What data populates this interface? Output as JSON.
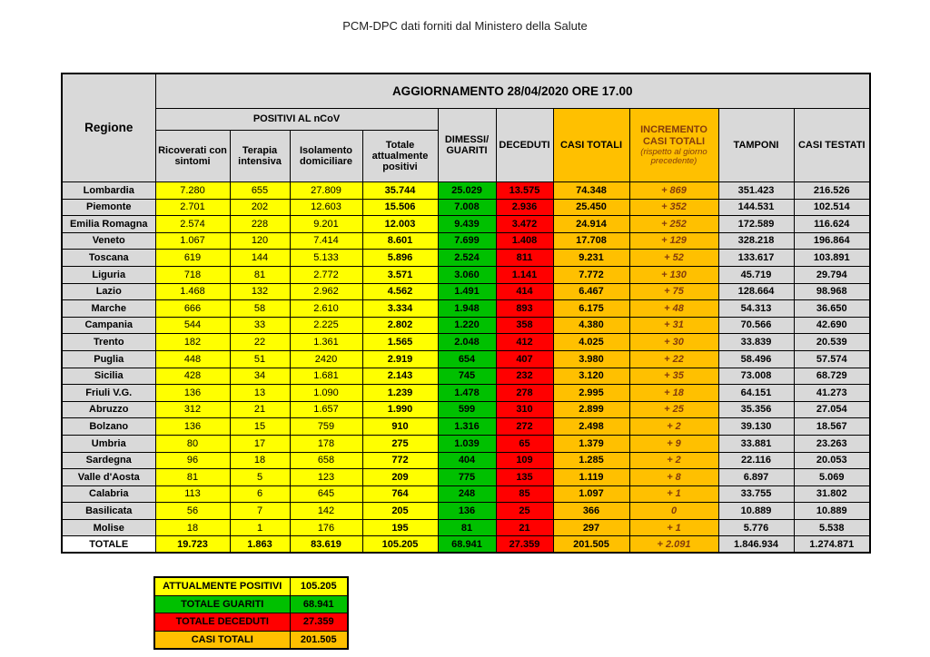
{
  "page_title": "PCM-DPC dati forniti dal Ministero della Salute",
  "colors": {
    "yellow": "#FFFF00",
    "green": "#00C000",
    "red": "#FF0000",
    "orange": "#FFC000",
    "header_gray": "#D9D9D9",
    "increment_text": "#843C0C"
  },
  "table": {
    "update_header": "AGGIORNAMENTO 28/04/2020 ORE 17.00",
    "region_header": "Regione",
    "positivi_group": "POSITIVI AL nCoV",
    "columns": {
      "ricoverati": "Ricoverati con sintomi",
      "terapia": "Terapia intensiva",
      "isolamento": "Isolamento domiciliare",
      "totale_positivi": "Totale attualmente positivi",
      "dimessi": "DIMESSI/\nGUARITI",
      "deceduti": "DECEDUTI",
      "casi_totali": "CASI TOTALI",
      "incremento": "INCREMENTO CASI  TOTALI",
      "incremento_note": "(rispetto al giorno precedente)",
      "tamponi": "TAMPONI",
      "casi_testati": "CASI TESTATI"
    },
    "rows": [
      {
        "region": "Lombardia",
        "values": [
          "7.280",
          "655",
          "27.809",
          "35.744",
          "25.029",
          "13.575",
          "74.348",
          "+ 869",
          "351.423",
          "216.526"
        ]
      },
      {
        "region": "Piemonte",
        "values": [
          "2.701",
          "202",
          "12.603",
          "15.506",
          "7.008",
          "2.936",
          "25.450",
          "+ 352",
          "144.531",
          "102.514"
        ]
      },
      {
        "region": "Emilia Romagna",
        "values": [
          "2.574",
          "228",
          "9.201",
          "12.003",
          "9.439",
          "3.472",
          "24.914",
          "+ 252",
          "172.589",
          "116.624"
        ]
      },
      {
        "region": "Veneto",
        "values": [
          "1.067",
          "120",
          "7.414",
          "8.601",
          "7.699",
          "1.408",
          "17.708",
          "+ 129",
          "328.218",
          "196.864"
        ]
      },
      {
        "region": "Toscana",
        "values": [
          "619",
          "144",
          "5.133",
          "5.896",
          "2.524",
          "811",
          "9.231",
          "+ 52",
          "133.617",
          "103.891"
        ]
      },
      {
        "region": "Liguria",
        "values": [
          "718",
          "81",
          "2.772",
          "3.571",
          "3.060",
          "1.141",
          "7.772",
          "+ 130",
          "45.719",
          "29.794"
        ]
      },
      {
        "region": "Lazio",
        "values": [
          "1.468",
          "132",
          "2.962",
          "4.562",
          "1.491",
          "414",
          "6.467",
          "+ 75",
          "128.664",
          "98.968"
        ]
      },
      {
        "region": "Marche",
        "values": [
          "666",
          "58",
          "2.610",
          "3.334",
          "1.948",
          "893",
          "6.175",
          "+ 48",
          "54.313",
          "36.650"
        ]
      },
      {
        "region": "Campania",
        "values": [
          "544",
          "33",
          "2.225",
          "2.802",
          "1.220",
          "358",
          "4.380",
          "+ 31",
          "70.566",
          "42.690"
        ]
      },
      {
        "region": "Trento",
        "values": [
          "182",
          "22",
          "1.361",
          "1.565",
          "2.048",
          "412",
          "4.025",
          "+ 30",
          "33.839",
          "20.539"
        ]
      },
      {
        "region": "Puglia",
        "values": [
          "448",
          "51",
          "2420",
          "2.919",
          "654",
          "407",
          "3.980",
          "+ 22",
          "58.496",
          "57.574"
        ]
      },
      {
        "region": "Sicilia",
        "values": [
          "428",
          "34",
          "1.681",
          "2.143",
          "745",
          "232",
          "3.120",
          "+ 35",
          "73.008",
          "68.729"
        ]
      },
      {
        "region": "Friuli V.G.",
        "values": [
          "136",
          "13",
          "1.090",
          "1.239",
          "1.478",
          "278",
          "2.995",
          "+ 18",
          "64.151",
          "41.273"
        ]
      },
      {
        "region": "Abruzzo",
        "values": [
          "312",
          "21",
          "1.657",
          "1.990",
          "599",
          "310",
          "2.899",
          "+ 25",
          "35.356",
          "27.054"
        ]
      },
      {
        "region": "Bolzano",
        "values": [
          "136",
          "15",
          "759",
          "910",
          "1.316",
          "272",
          "2.498",
          "+ 2",
          "39.130",
          "18.567"
        ]
      },
      {
        "region": "Umbria",
        "values": [
          "80",
          "17",
          "178",
          "275",
          "1.039",
          "65",
          "1.379",
          "+ 9",
          "33.881",
          "23.263"
        ]
      },
      {
        "region": "Sardegna",
        "values": [
          "96",
          "18",
          "658",
          "772",
          "404",
          "109",
          "1.285",
          "+ 2",
          "22.116",
          "20.053"
        ]
      },
      {
        "region": "Valle d'Aosta",
        "values": [
          "81",
          "5",
          "123",
          "209",
          "775",
          "135",
          "1.119",
          "+ 8",
          "6.897",
          "5.069"
        ]
      },
      {
        "region": "Calabria",
        "values": [
          "113",
          "6",
          "645",
          "764",
          "248",
          "85",
          "1.097",
          "+ 1",
          "33.755",
          "31.802"
        ]
      },
      {
        "region": "Basilicata",
        "values": [
          "56",
          "7",
          "142",
          "205",
          "136",
          "25",
          "366",
          "0",
          "10.889",
          "10.889"
        ]
      },
      {
        "region": "Molise",
        "values": [
          "18",
          "1",
          "176",
          "195",
          "81",
          "21",
          "297",
          "+ 1",
          "5.776",
          "5.538"
        ]
      }
    ],
    "total_row": {
      "label": "TOTALE",
      "values": [
        "19.723",
        "1.863",
        "83.619",
        "105.205",
        "68.941",
        "27.359",
        "201.505",
        "+ 2.091",
        "1.846.934",
        "1.274.871"
      ]
    }
  },
  "summary": {
    "rows": [
      {
        "label": "ATTUALMENTE POSITIVI",
        "value": "105.205",
        "color": "yellow"
      },
      {
        "label": "TOTALE GUARITI",
        "value": "68.941",
        "color": "green"
      },
      {
        "label": "TOTALE DECEDUTI",
        "value": "27.359",
        "color": "red"
      },
      {
        "label": "CASI TOTALI",
        "value": "201.505",
        "color": "orange"
      }
    ]
  }
}
